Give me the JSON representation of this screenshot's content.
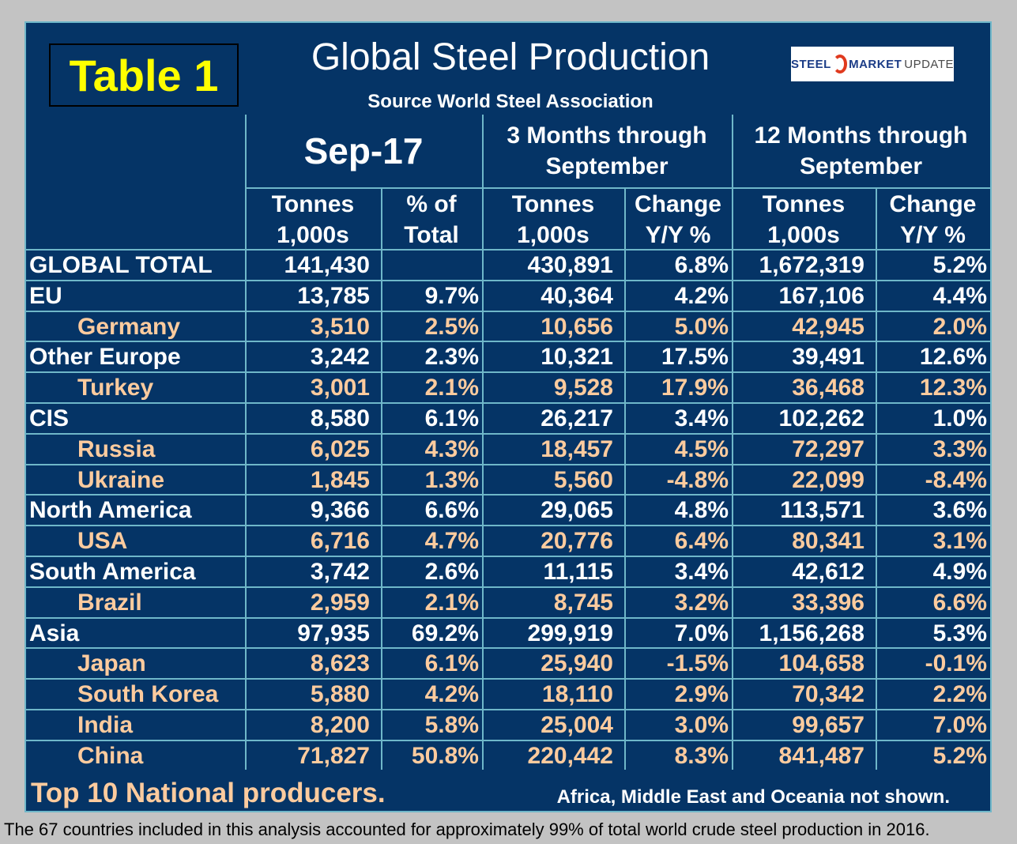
{
  "table_label": "Table 1",
  "title": "Global Steel Production",
  "source": "Source World Steel Association",
  "logo": {
    "part1": "STEEL",
    "part2": "MARKET",
    "part3": "UPDATE"
  },
  "headers": {
    "month": "Sep-17",
    "three_month_line1": "3 Months through",
    "three_month_line2": "September",
    "twelve_month_line1": "12 Months through",
    "twelve_month_line2": "September",
    "tonnes_line1": "Tonnes",
    "tonnes_line2": "1,000s",
    "pct_line1": "% of",
    "pct_line2": "Total",
    "change_line1": "Change",
    "change_line2": "Y/Y %"
  },
  "rows": [
    {
      "name": "GLOBAL TOTAL",
      "type": "region",
      "sep_tonnes": "141,430",
      "sep_pct": "",
      "m3_tonnes": "430,891",
      "m3_change": "6.8%",
      "m12_tonnes": "1,672,319",
      "m12_change": "5.2%"
    },
    {
      "name": "EU",
      "type": "region",
      "sep_tonnes": "13,785",
      "sep_pct": "9.7%",
      "m3_tonnes": "40,364",
      "m3_change": "4.2%",
      "m12_tonnes": "167,106",
      "m12_change": "4.4%"
    },
    {
      "name": "Germany",
      "type": "country",
      "sep_tonnes": "3,510",
      "sep_pct": "2.5%",
      "m3_tonnes": "10,656",
      "m3_change": "5.0%",
      "m12_tonnes": "42,945",
      "m12_change": "2.0%"
    },
    {
      "name": "Other Europe",
      "type": "region",
      "sep_tonnes": "3,242",
      "sep_pct": "2.3%",
      "m3_tonnes": "10,321",
      "m3_change": "17.5%",
      "m12_tonnes": "39,491",
      "m12_change": "12.6%"
    },
    {
      "name": "Turkey",
      "type": "country",
      "sep_tonnes": "3,001",
      "sep_pct": "2.1%",
      "m3_tonnes": "9,528",
      "m3_change": "17.9%",
      "m12_tonnes": "36,468",
      "m12_change": "12.3%"
    },
    {
      "name": "CIS",
      "type": "region",
      "sep_tonnes": "8,580",
      "sep_pct": "6.1%",
      "m3_tonnes": "26,217",
      "m3_change": "3.4%",
      "m12_tonnes": "102,262",
      "m12_change": "1.0%"
    },
    {
      "name": "Russia",
      "type": "country",
      "sep_tonnes": "6,025",
      "sep_pct": "4.3%",
      "m3_tonnes": "18,457",
      "m3_change": "4.5%",
      "m12_tonnes": "72,297",
      "m12_change": "3.3%"
    },
    {
      "name": "Ukraine",
      "type": "country",
      "sep_tonnes": "1,845",
      "sep_pct": "1.3%",
      "m3_tonnes": "5,560",
      "m3_change": "-4.8%",
      "m12_tonnes": "22,099",
      "m12_change": "-8.4%"
    },
    {
      "name": "North America",
      "type": "region",
      "sep_tonnes": "9,366",
      "sep_pct": "6.6%",
      "m3_tonnes": "29,065",
      "m3_change": "4.8%",
      "m12_tonnes": "113,571",
      "m12_change": "3.6%"
    },
    {
      "name": "USA",
      "type": "country",
      "sep_tonnes": "6,716",
      "sep_pct": "4.7%",
      "m3_tonnes": "20,776",
      "m3_change": "6.4%",
      "m12_tonnes": "80,341",
      "m12_change": "3.1%"
    },
    {
      "name": "South America",
      "type": "region",
      "sep_tonnes": "3,742",
      "sep_pct": "2.6%",
      "m3_tonnes": "11,115",
      "m3_change": "3.4%",
      "m12_tonnes": "42,612",
      "m12_change": "4.9%"
    },
    {
      "name": "Brazil",
      "type": "country",
      "sep_tonnes": "2,959",
      "sep_pct": "2.1%",
      "m3_tonnes": "8,745",
      "m3_change": "3.2%",
      "m12_tonnes": "33,396",
      "m12_change": "6.6%"
    },
    {
      "name": "Asia",
      "type": "region",
      "sep_tonnes": "97,935",
      "sep_pct": "69.2%",
      "m3_tonnes": "299,919",
      "m3_change": "7.0%",
      "m12_tonnes": "1,156,268",
      "m12_change": "5.3%"
    },
    {
      "name": "Japan",
      "type": "country",
      "sep_tonnes": "8,623",
      "sep_pct": "6.1%",
      "m3_tonnes": "25,940",
      "m3_change": "-1.5%",
      "m12_tonnes": "104,658",
      "m12_change": "-0.1%"
    },
    {
      "name": "South Korea",
      "type": "country",
      "sep_tonnes": "5,880",
      "sep_pct": "4.2%",
      "m3_tonnes": "18,110",
      "m3_change": "2.9%",
      "m12_tonnes": "70,342",
      "m12_change": "2.2%"
    },
    {
      "name": "India",
      "type": "country",
      "sep_tonnes": "8,200",
      "sep_pct": "5.8%",
      "m3_tonnes": "25,004",
      "m3_change": "3.0%",
      "m12_tonnes": "99,657",
      "m12_change": "7.0%"
    },
    {
      "name": "China",
      "type": "country",
      "sep_tonnes": "71,827",
      "sep_pct": "50.8%",
      "m3_tonnes": "220,442",
      "m3_change": "8.3%",
      "m12_tonnes": "841,487",
      "m12_change": "5.2%"
    }
  ],
  "footer_left": "Top 10 National producers.",
  "footer_right": "Africa, Middle East and Oceania not shown.",
  "bottom_note": "The 67 countries included in this analysis accounted for approximately 99% of total world crude steel production in 2016.",
  "colors": {
    "panel": "#053466",
    "border": "#6fb7c9",
    "label_yellow": "#ffff00",
    "country_text": "#fdcb9e",
    "page_bg": "#c3c3c3"
  }
}
